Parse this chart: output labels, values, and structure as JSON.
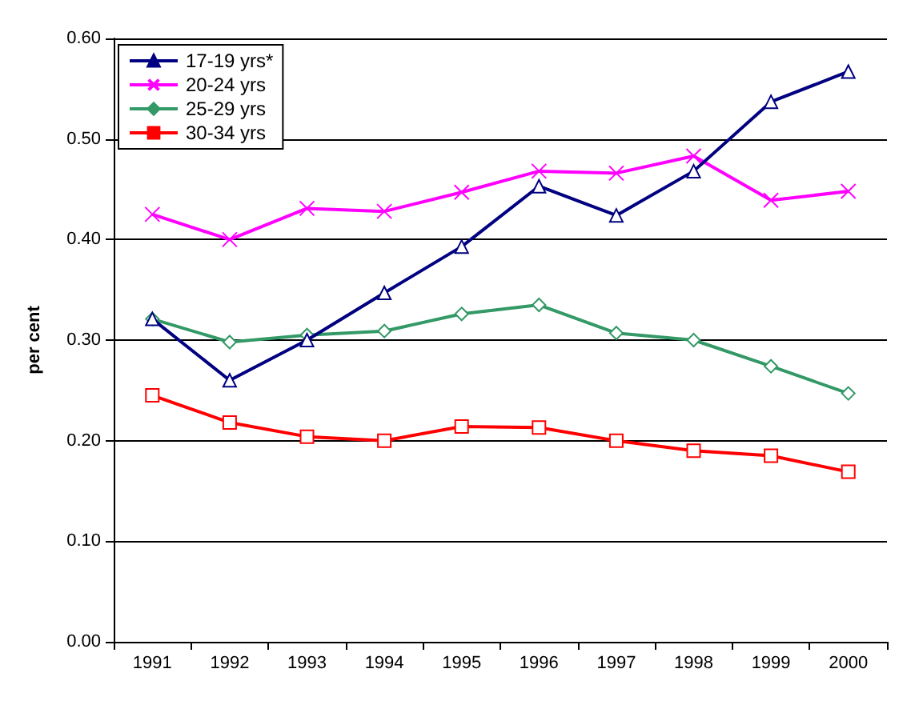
{
  "chart_data": {
    "type": "line",
    "ylabel": "per cent",
    "categories": [
      "1991",
      "1992",
      "1993",
      "1994",
      "1995",
      "1996",
      "1997",
      "1998",
      "1999",
      "2000"
    ],
    "series": [
      {
        "name": "17-19 yrs*",
        "color": "#000080",
        "marker": "triangle",
        "values": [
          0.321,
          0.26,
          0.3,
          0.347,
          0.393,
          0.453,
          0.424,
          0.468,
          0.537,
          0.567
        ]
      },
      {
        "name": "20-24 yrs",
        "color": "#ff00ff",
        "marker": "cross",
        "values": [
          0.425,
          0.4,
          0.431,
          0.428,
          0.447,
          0.468,
          0.466,
          0.483,
          0.439,
          0.448
        ]
      },
      {
        "name": "25-29 yrs",
        "color": "#339966",
        "marker": "diamond",
        "values": [
          0.321,
          0.298,
          0.305,
          0.309,
          0.326,
          0.335,
          0.307,
          0.3,
          0.274,
          0.247
        ]
      },
      {
        "name": "30-34 yrs",
        "color": "#ff0000",
        "marker": "square",
        "values": [
          0.245,
          0.218,
          0.204,
          0.2,
          0.214,
          0.213,
          0.2,
          0.19,
          0.185,
          0.169
        ]
      }
    ],
    "ylim": [
      0,
      0.6
    ],
    "yticks": [
      {
        "value": 0,
        "label": "0.00"
      },
      {
        "value": 0.1,
        "label": "0.10"
      },
      {
        "value": 0.2,
        "label": "0.20"
      },
      {
        "value": 0.3,
        "label": "0.30"
      },
      {
        "value": 0.4,
        "label": "0.40"
      },
      {
        "value": 0.5,
        "label": "0.50"
      },
      {
        "value": 0.6,
        "label": "0.60"
      }
    ],
    "grid": "y",
    "legend": "top left"
  }
}
